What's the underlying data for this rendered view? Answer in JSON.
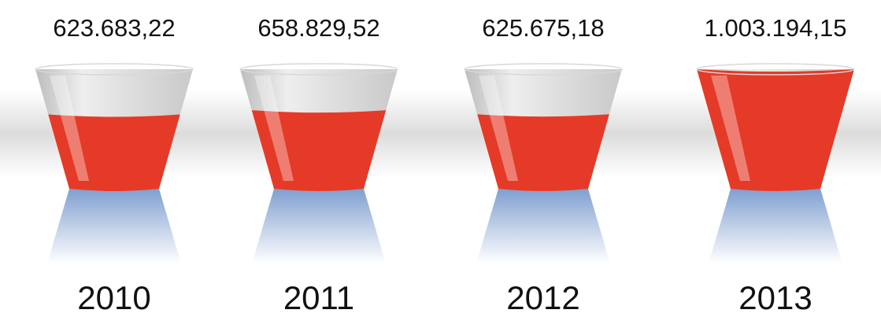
{
  "chart_data": {
    "type": "cup",
    "categories": [
      "2010",
      "2011",
      "2012",
      "2013"
    ],
    "values": [
      623683.22,
      658829.52,
      625675.18,
      1003194.15
    ],
    "value_labels": [
      "623.683,22",
      "658.829,52",
      "625.675,18",
      "1.003.194,15"
    ],
    "color": "#e53a27",
    "ylim": [
      0,
      1003194.15
    ]
  }
}
